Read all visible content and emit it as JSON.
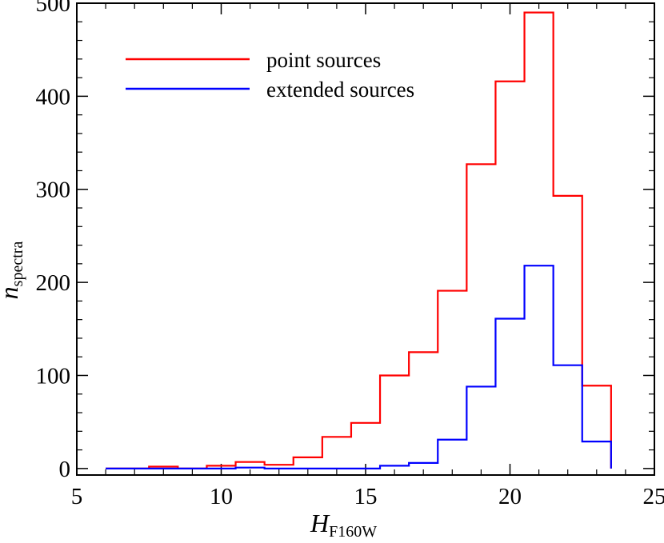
{
  "chart_data": {
    "type": "histogram",
    "xlabel": "H",
    "xlabel_sub": "F160W",
    "ylabel": "n",
    "ylabel_sub": "spectra",
    "xlim": [
      5,
      25
    ],
    "ylim": [
      -7,
      500
    ],
    "x_ticks": [
      "5",
      "10",
      "15",
      "20",
      "25"
    ],
    "y_ticks": [
      "0",
      "100",
      "200",
      "300",
      "400",
      "500"
    ],
    "grid": false,
    "legend_position": "top-left",
    "bin_edges": [
      6.0,
      7.0,
      7.5,
      8.5,
      9.5,
      10.5,
      11.5,
      12.5,
      13.5,
      14.5,
      15.5,
      16.5,
      17.5,
      18.5,
      19.5,
      20.5,
      21.5,
      22.5,
      23.5
    ],
    "series": [
      {
        "name": "point sources",
        "color": "#ff0000",
        "values": [
          0,
          0,
          2,
          0,
          3,
          7,
          4,
          12,
          34,
          49,
          100,
          125,
          191,
          327,
          416,
          490,
          293,
          89
        ]
      },
      {
        "name": "extended sources",
        "color": "#0000ff",
        "values": [
          0,
          0,
          0,
          0,
          0,
          1,
          0,
          0,
          0,
          0,
          3,
          6,
          31,
          88,
          161,
          218,
          111,
          29
        ]
      }
    ]
  }
}
